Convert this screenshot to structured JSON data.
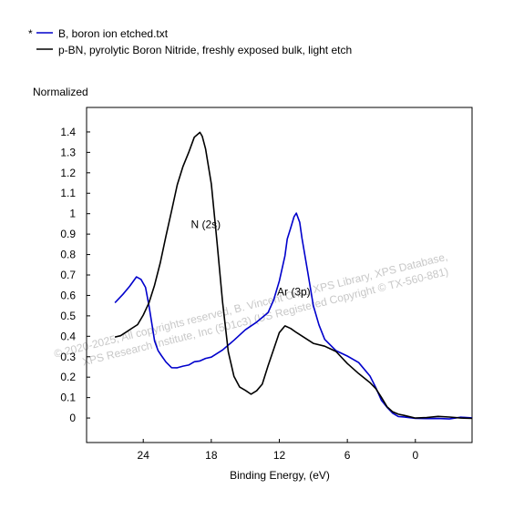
{
  "chart_data": {
    "type": "line",
    "xlabel": "Binding Energy, (eV)",
    "ylabel": "Normalized",
    "x_reversed": true,
    "xlim": [
      29,
      -5
    ],
    "ylim": [
      -0.12,
      1.52
    ],
    "x_ticks": [
      24,
      18,
      12,
      6,
      0
    ],
    "y_ticks": [
      0,
      0.1,
      0.2,
      0.3,
      0.4,
      0.5,
      0.6,
      0.7,
      0.8,
      0.9,
      1,
      1.1,
      1.2,
      1.3,
      1.4
    ],
    "legend_position": "top-left",
    "series": [
      {
        "name": "B, boron ion etched.txt",
        "legend_marker": "*",
        "color": "#0000cc",
        "x": [
          26.5,
          25.8,
          25.2,
          24.6,
          24.2,
          23.8,
          23.5,
          23.2,
          23.0,
          22.7,
          22.4,
          22.0,
          21.5,
          21.0,
          20.5,
          20.0,
          19.5,
          19.0,
          18.5,
          18.0,
          17.0,
          16.0,
          15.0,
          14.0,
          13.0,
          12.5,
          12.0,
          11.5,
          11.3,
          11.0,
          10.7,
          10.5,
          10.2,
          10.0,
          9.5,
          9.0,
          8.5,
          8.0,
          7.0,
          6.0,
          5.0,
          4.0,
          3.5,
          3.0,
          2.5,
          2.0,
          1.5,
          1.0,
          0.0,
          -1.0,
          -2.0,
          -3.0,
          -4.0,
          -5.0
        ],
        "y": [
          0.57,
          0.6,
          0.65,
          0.69,
          0.68,
          0.64,
          0.55,
          0.45,
          0.38,
          0.33,
          0.3,
          0.27,
          0.25,
          0.24,
          0.25,
          0.26,
          0.27,
          0.28,
          0.29,
          0.3,
          0.33,
          0.38,
          0.43,
          0.47,
          0.52,
          0.58,
          0.67,
          0.8,
          0.88,
          0.93,
          0.98,
          1.0,
          0.96,
          0.88,
          0.72,
          0.55,
          0.45,
          0.38,
          0.33,
          0.3,
          0.27,
          0.2,
          0.15,
          0.09,
          0.05,
          0.02,
          0.01,
          0.005,
          0.003,
          0.002,
          0.0,
          0.0,
          0.0,
          0.0
        ]
      },
      {
        "name": "p-BN, pyrolytic Boron Nitride, freshly exposed bulk, light etch",
        "legend_marker": "",
        "color": "#000000",
        "x": [
          26.5,
          26.0,
          25.5,
          25.0,
          24.5,
          24.0,
          23.5,
          23.0,
          22.5,
          22.0,
          21.5,
          21.0,
          20.5,
          20.0,
          19.5,
          19.0,
          18.8,
          18.5,
          18.0,
          17.5,
          17.0,
          16.5,
          16.0,
          15.5,
          15.0,
          14.5,
          14.0,
          13.5,
          13.0,
          12.5,
          12.0,
          11.5,
          11.0,
          10.5,
          10.0,
          9.0,
          8.0,
          7.0,
          6.0,
          5.0,
          4.0,
          3.5,
          3.0,
          2.5,
          2.0,
          1.5,
          1.0,
          0.0,
          -1.0,
          -2.0,
          -3.0,
          -4.0,
          -5.0
        ],
        "y": [
          0.4,
          0.4,
          0.42,
          0.44,
          0.46,
          0.5,
          0.56,
          0.65,
          0.76,
          0.89,
          1.02,
          1.14,
          1.23,
          1.3,
          1.37,
          1.4,
          1.38,
          1.32,
          1.14,
          0.86,
          0.56,
          0.32,
          0.21,
          0.15,
          0.13,
          0.12,
          0.13,
          0.17,
          0.25,
          0.34,
          0.42,
          0.45,
          0.44,
          0.42,
          0.4,
          0.37,
          0.35,
          0.32,
          0.27,
          0.22,
          0.17,
          0.14,
          0.1,
          0.06,
          0.03,
          0.015,
          0.01,
          0.005,
          0.003,
          0.002,
          0.0,
          0.0,
          0.0
        ]
      }
    ],
    "annotations": [
      {
        "text": "N (2s)",
        "x": 19.8,
        "y": 0.93
      },
      {
        "text": "Ar (3p)",
        "x": 12.2,
        "y": 0.6
      }
    ],
    "watermark": [
      "© 2020-2025, All copyrights reserved,   B. Vincent Crist,  XPS Library, XPS Database,",
      "XPS Research Institute, Inc (501c3)      (US Registered Copyright © TX-560-881)"
    ]
  }
}
